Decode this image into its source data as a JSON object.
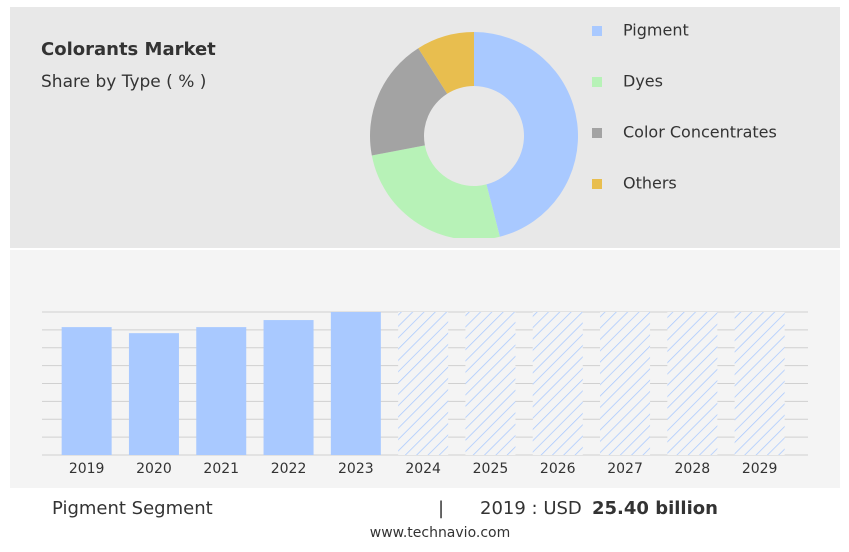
{
  "chart_data": [
    {
      "type": "donut",
      "title": "Colorants Market",
      "subtitle": "Share by Type ( % )",
      "categories": [
        "Pigment",
        "Dyes",
        "Color Concentrates",
        "Others"
      ],
      "values": [
        46,
        26,
        19,
        9
      ],
      "colors": [
        "#a9c9ff",
        "#b7f2b7",
        "#a3a3a3",
        "#e8be4f"
      ]
    },
    {
      "type": "bar",
      "categories": [
        "2019",
        "2020",
        "2021",
        "2022",
        "2023",
        "2024",
        "2025",
        "2026",
        "2027",
        "2028",
        "2029"
      ],
      "values": [
        25.4,
        24.2,
        25.4,
        26.8,
        28.4,
        null,
        null,
        null,
        null,
        null,
        null
      ],
      "color": "#a9c9ff",
      "ylim": [
        0,
        28.4
      ],
      "yticks": [
        0,
        3.55,
        7.1,
        10.65,
        14.2,
        17.75,
        21.3,
        24.85,
        28.4
      ],
      "grid": true
    }
  ],
  "footer": {
    "segment": "Pigment Segment",
    "year": "2019 : USD",
    "value": "25.40 billion"
  },
  "source": "www.technavio.com"
}
